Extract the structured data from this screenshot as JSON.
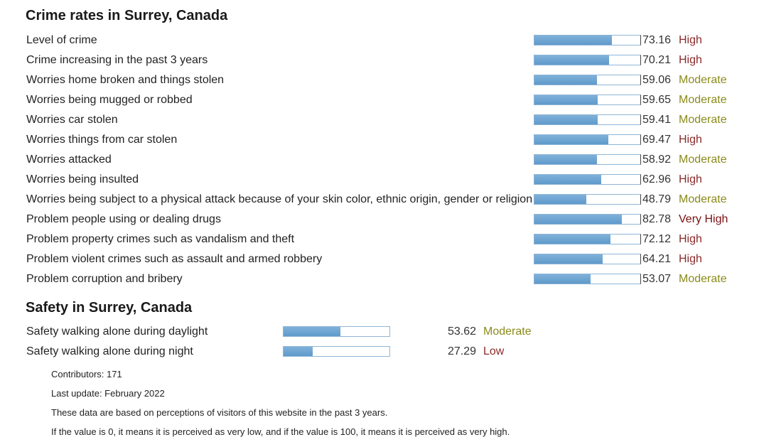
{
  "crime_section": {
    "title": "Crime rates in Surrey, Canada",
    "rows": [
      {
        "label": "Level of crime",
        "value": "73.16",
        "level": "High",
        "level_class": "high",
        "fill_fraction": 0.7316
      },
      {
        "label": "Crime increasing in the past 3 years",
        "value": "70.21",
        "level": "High",
        "level_class": "high",
        "fill_fraction": 0.7021
      },
      {
        "label": "Worries home broken and things stolen",
        "value": "59.06",
        "level": "Moderate",
        "level_class": "moderate",
        "fill_fraction": 0.5906
      },
      {
        "label": "Worries being mugged or robbed",
        "value": "59.65",
        "level": "Moderate",
        "level_class": "moderate",
        "fill_fraction": 0.5965
      },
      {
        "label": "Worries car stolen",
        "value": "59.41",
        "level": "Moderate",
        "level_class": "moderate",
        "fill_fraction": 0.5941
      },
      {
        "label": "Worries things from car stolen",
        "value": "69.47",
        "level": "High",
        "level_class": "high",
        "fill_fraction": 0.6947
      },
      {
        "label": "Worries attacked",
        "value": "58.92",
        "level": "Moderate",
        "level_class": "moderate",
        "fill_fraction": 0.5892
      },
      {
        "label": "Worries being insulted",
        "value": "62.96",
        "level": "High",
        "level_class": "high",
        "fill_fraction": 0.6296
      },
      {
        "label": "Worries being subject to a physical attack because of your skin color, ethnic origin, gender or religion",
        "value": "48.79",
        "level": "Moderate",
        "level_class": "moderate",
        "fill_fraction": 0.4879
      },
      {
        "label": "Problem people using or dealing drugs",
        "value": "82.78",
        "level": "Very High",
        "level_class": "veryhigh",
        "fill_fraction": 0.8278
      },
      {
        "label": "Problem property crimes such as vandalism and theft",
        "value": "72.12",
        "level": "High",
        "level_class": "high",
        "fill_fraction": 0.7212
      },
      {
        "label": "Problem violent crimes such as assault and armed robbery",
        "value": "64.21",
        "level": "High",
        "level_class": "high",
        "fill_fraction": 0.6421
      },
      {
        "label": "Problem corruption and bribery",
        "value": "53.07",
        "level": "Moderate",
        "level_class": "moderate",
        "fill_fraction": 0.5307
      }
    ]
  },
  "safety_section": {
    "title": "Safety in Surrey, Canada",
    "rows": [
      {
        "label": "Safety walking alone during daylight",
        "value": "53.62",
        "level": "Moderate",
        "level_class": "moderate",
        "fill_fraction": 0.5362
      },
      {
        "label": "Safety walking alone during night",
        "value": "27.29",
        "level": "Low",
        "level_class": "low",
        "fill_fraction": 0.2729
      }
    ]
  },
  "notes": {
    "contributors": "Contributors: 171",
    "last_update": "Last update: February 2022",
    "disclaimer": "These data are based on perceptions of visitors of this website in the past 3 years.",
    "scale_note": "If the value is 0, it means it is perceived as very low, and if the value is 100, it means it is perceived as very high."
  },
  "colors": {
    "bar_fill": "#6ea5d3",
    "bar_border": "#8fb6d6",
    "level_high": "#8b2a2a",
    "level_moderate": "#8a8a1a"
  }
}
